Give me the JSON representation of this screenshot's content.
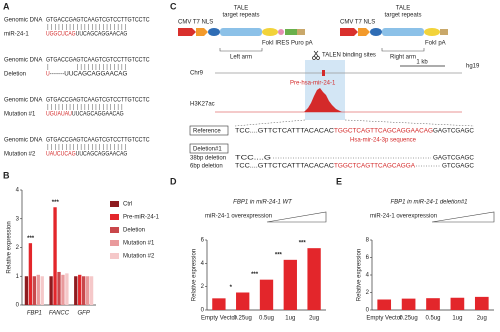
{
  "panel_labels": [
    "A",
    "B",
    "C",
    "D",
    "E"
  ],
  "panel_a": {
    "rows": [
      {
        "top_label": "Genomic DNA",
        "top_seq": "GTGACCGAGTCAAGTCGTCCTTGTCCTC",
        "bottom_label": "miR-24-1",
        "bottom_red": "UGGCUCAG",
        "bottom_black": "UUCAGCAGGAACAG"
      },
      {
        "top_label": "Genomic DNA",
        "top_seq": "GTGACCGAGTCAAGTCGTCCTTGTCCTC",
        "bottom_label": "Deletion",
        "bottom_red": "U",
        "bottom_black": "-------UUCAGCAGGAACAG"
      },
      {
        "top_label": "Genomic DNA",
        "top_seq": "GTGACCGAGTCAAGTCGTCCTTGTCCTC",
        "bottom_label": "Mutation #1",
        "bottom_red": "UGUAUAU",
        "bottom_black": "UUCAGCAGGAACAG"
      },
      {
        "top_label": "Genomic DNA",
        "top_seq": "GTGACCGAGTCAAGTCGTCCTTGTCCTC",
        "bottom_label": "Mutation #2",
        "bottom_red": "UAUCUCAG",
        "bottom_black": "UUCAGCAGGAACAG"
      }
    ]
  },
  "panel_c": {
    "left": {
      "promoters": "CMV T7 NLS",
      "tale": "TALE",
      "repeats": "target repeats",
      "tail": "FokI IRES Puro pA",
      "arm": "Left arm"
    },
    "right": {
      "promoters": "CMV T7 NLS",
      "tale": "TALE",
      "repeats": "target repeats",
      "tail": "FokI pA",
      "arm": "Right arm"
    },
    "binding": "TALEN binding sites",
    "chrom": "Chr9",
    "scale": "1 kb",
    "assembly": "hg19",
    "gene": "Pre-hsa-mir-24-1",
    "track": "H3K27ac",
    "reference": {
      "label": "Reference",
      "seq_a": "TCC....GTTCTCATTTACACAC",
      "seq_red": "TGGCTCAGTTCAGCAGGAACAG",
      "seq_b": "GAGTCGAGC",
      "note": "Hsa-mir-24-3p sequence"
    },
    "deletion": {
      "label": "Deletion#1",
      "row1": {
        "name": "38bp deletion",
        "left": "TCC....G",
        "right": "GAGTCGAGC"
      },
      "row2": {
        "name": "6bp deletion",
        "left": "TCC....GTTCTCATTTACACAC",
        "red": "TGGCTCAGTTCAGCAGGA",
        "right": "GTCGAGC"
      }
    }
  },
  "chart_data": [
    {
      "type": "bar",
      "y_label": "Relative expression",
      "categories": [
        "FBP1",
        "FANCC",
        "GFP"
      ],
      "category_style": "italic",
      "series": [
        {
          "name": "Ctrl",
          "color": "#8e1b1f",
          "values": [
            1,
            1,
            1
          ]
        },
        {
          "name": "Pre-miR-24-1",
          "color": "#e3262b",
          "values": [
            2.15,
            3.4,
            1.05
          ]
        },
        {
          "name": "Deletion",
          "color": "#c9474b",
          "values": [
            1,
            1.15,
            1
          ]
        },
        {
          "name": "Mutation #1",
          "color": "#e99a9c",
          "values": [
            1.05,
            1.05,
            1
          ]
        },
        {
          "name": "Mutation #2",
          "color": "#f5c8c9",
          "values": [
            1,
            1.1,
            1
          ]
        }
      ],
      "ylim": [
        0,
        4
      ],
      "yticks": [
        0,
        1,
        2,
        3,
        4
      ],
      "annotations": [
        {
          "text": "***",
          "category": "FBP1"
        },
        {
          "text": "***",
          "category": "FANCC"
        }
      ]
    },
    {
      "type": "bar",
      "title": "FBP1 in miR-24-1 WT",
      "overexpression_label": "miR-24-1 overexpression",
      "y_label": "Relative expression",
      "categories": [
        "Empty Vector",
        "0.25ug",
        "0.5ug",
        "1ug",
        "2ug"
      ],
      "values": [
        1,
        1.5,
        2.6,
        4.3,
        5.3
      ],
      "color": "#e3262b",
      "ylim": [
        0,
        6
      ],
      "yticks": [
        0,
        2,
        4,
        6
      ],
      "annotations": [
        {
          "text": "*",
          "category": "0.25ug"
        },
        {
          "text": "***",
          "category": "0.5ug"
        },
        {
          "text": "***",
          "category": "1ug"
        },
        {
          "text": "***",
          "category": "2ug"
        }
      ]
    },
    {
      "type": "bar",
      "title": "FBP1 in miR-24-1 deletion#1",
      "overexpression_label": "miR-24-1 overexpression",
      "y_label": "Relative expression",
      "categories": [
        "Empty Vector",
        "0.25ug",
        "0.5ug",
        "1ug",
        "2ug"
      ],
      "values": [
        1.2,
        1.3,
        1.35,
        1.4,
        1.5
      ],
      "color": "#e3262b",
      "ylim": [
        0,
        8
      ],
      "yticks": [
        0,
        2,
        4,
        6,
        8
      ]
    }
  ]
}
